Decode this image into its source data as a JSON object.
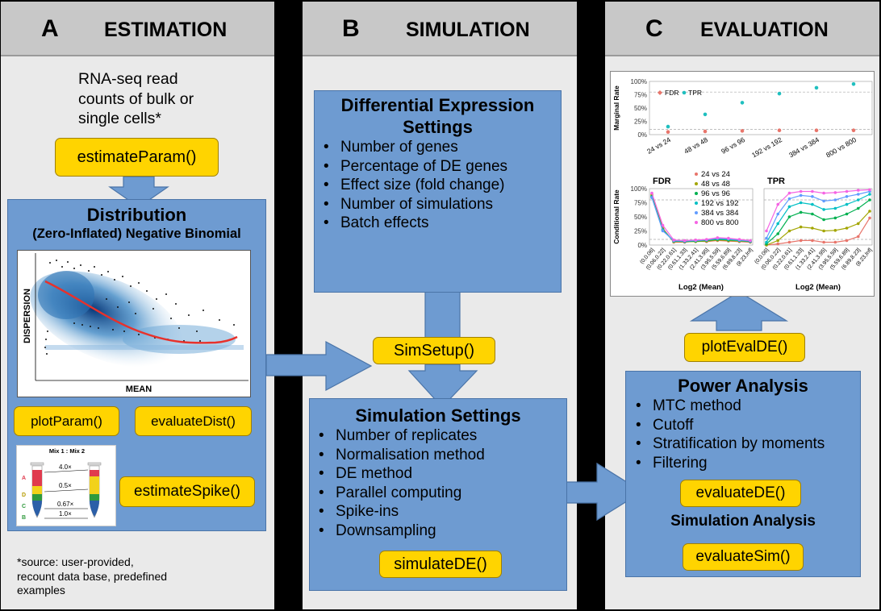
{
  "panels": {
    "a": {
      "letter": "A",
      "title": "ESTIMATION"
    },
    "b": {
      "letter": "B",
      "title": "SIMULATION"
    },
    "c": {
      "letter": "C",
      "title": "EVALUATION"
    }
  },
  "estimation": {
    "input_lines": [
      "RNA-seq read",
      "counts of bulk or",
      "single cells*"
    ],
    "estimate_param": "estimateParam()",
    "distribution_title": "Distribution",
    "distribution_subtitle": "(Zero-Inflated) Negative Binomial",
    "plot_ylabel": "DISPERSION",
    "plot_xlabel": "MEAN",
    "plot_param": "plotParam()",
    "evaluate_dist": "evaluateDist()",
    "spike_title": "Mix 1 : Mix 2",
    "spike_letters": [
      "A",
      "D",
      "C",
      "B"
    ],
    "spike_ratios": [
      "4.0×",
      "0.5×",
      "0.67×",
      "1.0×"
    ],
    "estimate_spike": "estimateSpike()",
    "footnote": [
      "*source: user-provided,",
      "recount data base, predefined",
      "examples"
    ]
  },
  "de_settings": {
    "title_line1": "Differential Expression",
    "title_line2": "Settings",
    "items": [
      "Number of genes",
      "Percentage of DE genes",
      "Effect size (fold change)",
      "Number of simulations",
      "Batch effects"
    ]
  },
  "sim_setup": "SimSetup()",
  "sim_settings": {
    "title": "Simulation Settings",
    "items": [
      "Number of replicates",
      "Normalisation method",
      "DE method",
      "Parallel computing",
      "Spike-ins",
      "Downsampling"
    ],
    "button": "simulateDE()"
  },
  "eval": {
    "plot_eval_de": "plotEvalDE()",
    "power_title": "Power Analysis",
    "power_items": [
      "MTC method",
      "Cutoff",
      "Stratification by moments",
      "Filtering"
    ],
    "evaluate_de": "evaluateDE()",
    "sim_analysis_title": "Simulation Analysis",
    "evaluate_sim": "evaluateSim()"
  },
  "chart_data": [
    {
      "type": "scatter",
      "ylabel": "Marginal Rate",
      "categories": [
        "24 vs 24",
        "48 vs 48",
        "96 vs 96",
        "192 vs 192",
        "384 vs 384",
        "800 vs 800"
      ],
      "yticks": [
        "0%",
        "25%",
        "50%",
        "75%",
        "100%"
      ],
      "ylim": [
        0,
        1
      ],
      "series": [
        {
          "name": "FDR",
          "color": "#e8756b",
          "values": [
            0.05,
            0.06,
            0.07,
            0.08,
            0.08,
            0.08
          ]
        },
        {
          "name": "TPR",
          "color": "#1fbfbf",
          "values": [
            0.15,
            0.38,
            0.6,
            0.77,
            0.88,
            0.95
          ]
        }
      ]
    },
    {
      "type": "line",
      "title": "FDR",
      "ylabel": "Conditional Rate",
      "xlabel": "Log2 (Mean)",
      "yticks": [
        "0%",
        "25%",
        "50%",
        "75%",
        "100%"
      ],
      "categories": [
        "(0,0.06]",
        "(0.06,0.22]",
        "(0.22,0.61]",
        "(0.61,1.33]",
        "(1.33,2.41]",
        "(2.41,3.95]",
        "(3.95,5.59]",
        "(5.59,6.89]",
        "(6.89,8.23]",
        "(8.23,Inf]"
      ],
      "ylim": [
        0,
        1
      ],
      "series": [
        {
          "name": "24 vs 24",
          "color": "#e8756b",
          "values": [
            0.9,
            0.3,
            0.05,
            0.05,
            0.07,
            0.06,
            0.08,
            0.07,
            0.06,
            0.05
          ]
        },
        {
          "name": "48 vs 48",
          "color": "#a3a500",
          "values": [
            0.88,
            0.28,
            0.06,
            0.06,
            0.06,
            0.07,
            0.09,
            0.08,
            0.07,
            0.06
          ]
        },
        {
          "name": "96 vs 96",
          "color": "#00b050",
          "values": [
            0.86,
            0.27,
            0.07,
            0.06,
            0.07,
            0.08,
            0.1,
            0.09,
            0.08,
            0.06
          ]
        },
        {
          "name": "192 vs 192",
          "color": "#00bfc4",
          "values": [
            0.85,
            0.26,
            0.07,
            0.07,
            0.08,
            0.09,
            0.11,
            0.1,
            0.08,
            0.07
          ]
        },
        {
          "name": "384 vs 384",
          "color": "#619cff",
          "values": [
            0.84,
            0.25,
            0.08,
            0.07,
            0.08,
            0.09,
            0.12,
            0.11,
            0.09,
            0.07
          ]
        },
        {
          "name": "800 vs 800",
          "color": "#f564e3",
          "values": [
            0.92,
            0.35,
            0.09,
            0.08,
            0.09,
            0.1,
            0.13,
            0.12,
            0.1,
            0.08
          ]
        }
      ]
    },
    {
      "type": "line",
      "title": "TPR",
      "xlabel": "Log2 (Mean)",
      "categories": [
        "(0,0.06]",
        "(0.06,0.22]",
        "(0.22,0.61]",
        "(0.61,1.33]",
        "(1.33,2.41]",
        "(2.41,3.95]",
        "(3.95,5.59]",
        "(5.59,6.89]",
        "(6.89,8.23]",
        "(8.23,Inf]"
      ],
      "ylim": [
        0,
        1
      ],
      "series": [
        {
          "name": "24 vs 24",
          "color": "#e8756b",
          "values": [
            0.0,
            0.02,
            0.05,
            0.08,
            0.08,
            0.05,
            0.05,
            0.08,
            0.15,
            0.48
          ]
        },
        {
          "name": "48 vs 48",
          "color": "#a3a500",
          "values": [
            0.0,
            0.08,
            0.25,
            0.32,
            0.3,
            0.25,
            0.26,
            0.3,
            0.38,
            0.6
          ]
        },
        {
          "name": "96 vs 96",
          "color": "#00b050",
          "values": [
            0.02,
            0.2,
            0.5,
            0.58,
            0.55,
            0.45,
            0.48,
            0.55,
            0.65,
            0.8
          ]
        },
        {
          "name": "192 vs 192",
          "color": "#00bfc4",
          "values": [
            0.05,
            0.38,
            0.68,
            0.75,
            0.72,
            0.63,
            0.65,
            0.72,
            0.8,
            0.9
          ]
        },
        {
          "name": "384 vs 384",
          "color": "#619cff",
          "values": [
            0.12,
            0.55,
            0.82,
            0.88,
            0.86,
            0.78,
            0.8,
            0.86,
            0.9,
            0.95
          ]
        },
        {
          "name": "800 vs 800",
          "color": "#f564e3",
          "values": [
            0.25,
            0.72,
            0.92,
            0.95,
            0.95,
            0.92,
            0.93,
            0.95,
            0.97,
            0.98
          ]
        }
      ]
    }
  ]
}
